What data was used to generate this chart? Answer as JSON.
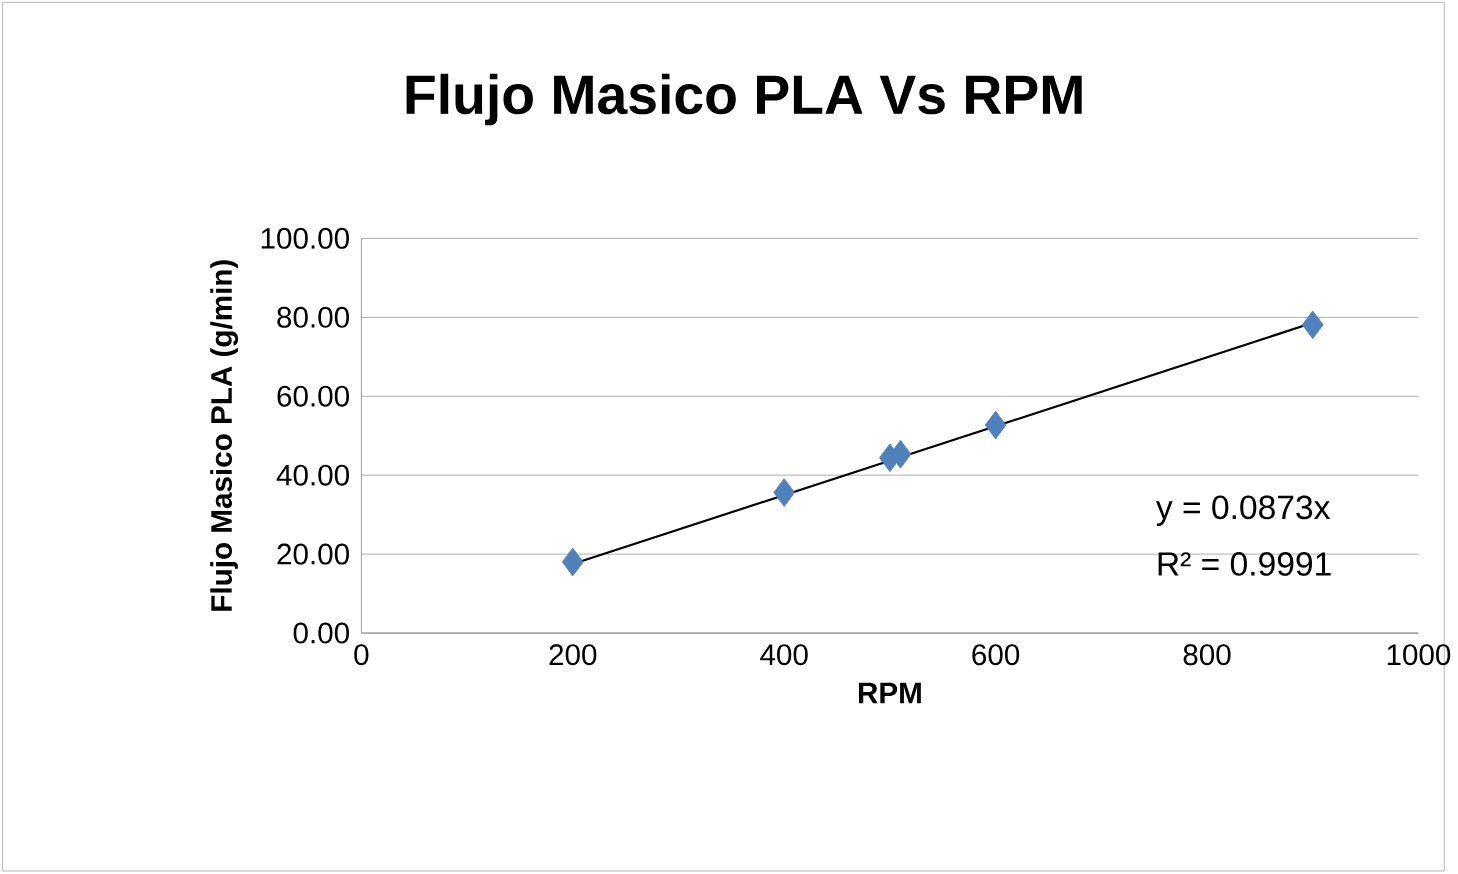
{
  "chart_data": {
    "type": "scatter",
    "title": "Flujo Masico PLA Vs RPM",
    "xlabel": "RPM",
    "ylabel": "Flujo Masico PLA (g/min)",
    "xlim": [
      0,
      1000
    ],
    "xticks": [
      0,
      200,
      400,
      600,
      800,
      1000
    ],
    "ylim": [
      0,
      100
    ],
    "yticks": [
      {
        "value": 0,
        "label": "0.00"
      },
      {
        "value": 20,
        "label": "20.00"
      },
      {
        "value": 40,
        "label": "40.00"
      },
      {
        "value": 60,
        "label": "60.00"
      },
      {
        "value": 80,
        "label": "80.00"
      },
      {
        "value": 100,
        "label": "100.00"
      }
    ],
    "grid": "y",
    "series": [
      {
        "type": "scatter",
        "color": "#4f81bd",
        "marker": "diamond",
        "x": [
          200,
          400,
          500,
          510,
          600,
          900
        ],
        "values": [
          18.0,
          35.6,
          44.4,
          45.3,
          52.7,
          78.1
        ]
      },
      {
        "type": "line",
        "color": "#000000",
        "marker": "none",
        "line_style": "solid",
        "x": [
          200,
          900
        ],
        "values": [
          17.5,
          78.6
        ]
      }
    ],
    "annotations": [
      "y = 0.0873x",
      "R² = 0.9991"
    ]
  }
}
